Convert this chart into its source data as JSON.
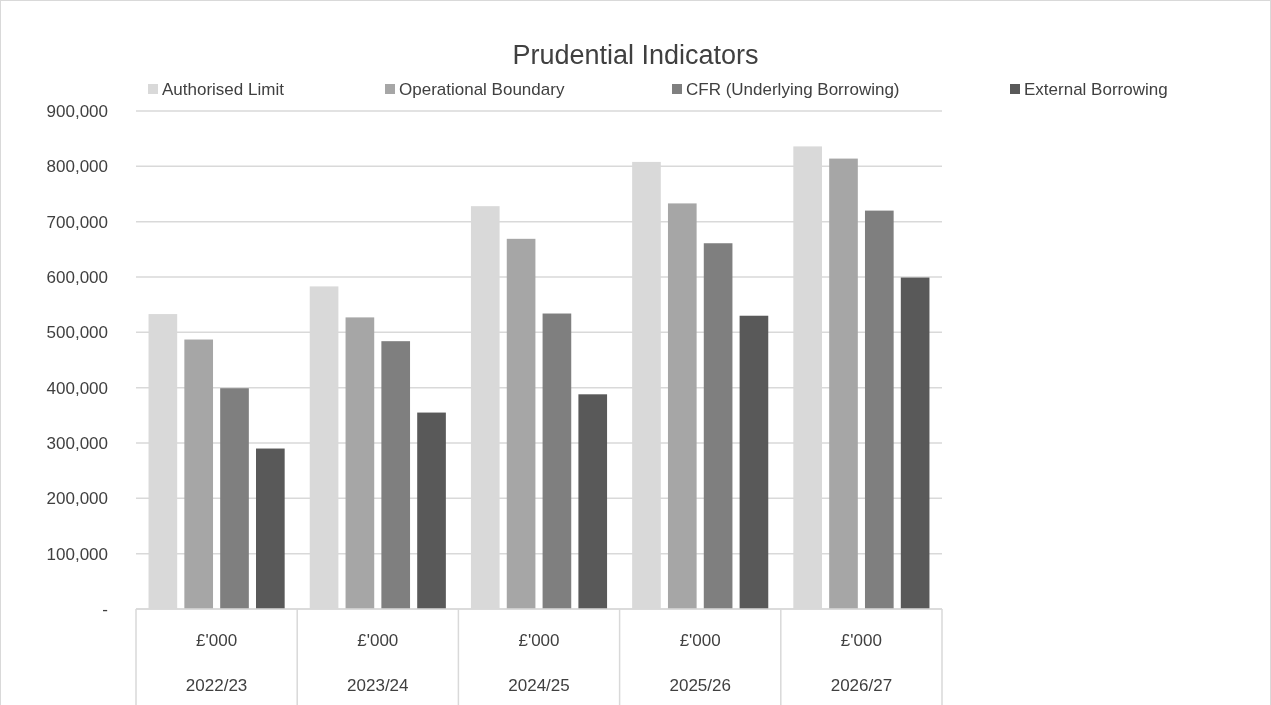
{
  "chart_data": {
    "type": "bar",
    "title": "Prudential Indicators",
    "categories": [
      "£'000\n2022/23",
      "£'000\n2023/24",
      "£'000\n2024/25",
      "£'000\n2025/26",
      "£'000\n2026/27"
    ],
    "series": [
      {
        "name": "Authorised Limit",
        "color": "#d9d9d9",
        "values": [
          533000,
          583000,
          728000,
          808000,
          836000
        ]
      },
      {
        "name": "Operational Boundary",
        "color": "#a6a6a6",
        "values": [
          487000,
          527000,
          669000,
          733000,
          814000
        ]
      },
      {
        "name": "CFR (Underlying Borrowing)",
        "color": "#7f7f7f",
        "values": [
          399000,
          484000,
          534000,
          661000,
          720000
        ]
      },
      {
        "name": "External Borrowing",
        "color": "#595959",
        "values": [
          290000,
          355000,
          388000,
          530000,
          599000
        ]
      }
    ],
    "ylim": [
      0,
      900000
    ],
    "yticks": [
      {
        "value": 0,
        "label": "-"
      },
      {
        "value": 100000,
        "label": "100,000"
      },
      {
        "value": 200000,
        "label": "200,000"
      },
      {
        "value": 300000,
        "label": "300,000"
      },
      {
        "value": 400000,
        "label": "400,000"
      },
      {
        "value": 500000,
        "label": "500,000"
      },
      {
        "value": 600000,
        "label": "600,000"
      },
      {
        "value": 700000,
        "label": "700,000"
      },
      {
        "value": 800000,
        "label": "800,000"
      },
      {
        "value": 900000,
        "label": "900,000"
      }
    ],
    "grid": "y",
    "legend": "top"
  }
}
